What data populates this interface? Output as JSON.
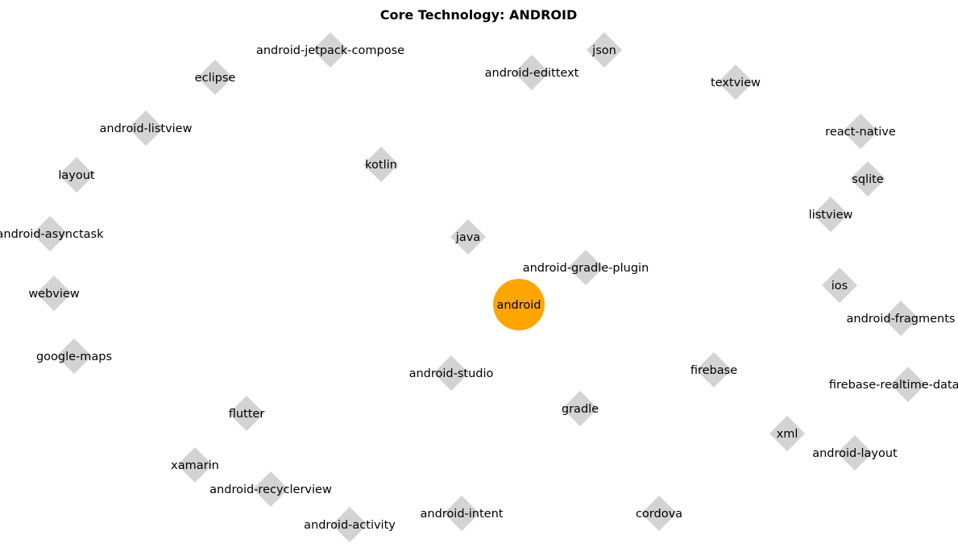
{
  "title": "Core Technology: ANDROID",
  "colors": {
    "center_node": "#FFA500",
    "related_node": "#D3D3D3",
    "label_text": "#000000",
    "background": "#FFFFFF"
  },
  "center": {
    "label": "android",
    "shape": "circle"
  },
  "node_shape": "diamond",
  "nodes": [
    {
      "label": "android-jetpack-compose"
    },
    {
      "label": "json"
    },
    {
      "label": "eclipse"
    },
    {
      "label": "android-edittext"
    },
    {
      "label": "textview"
    },
    {
      "label": "android-listview"
    },
    {
      "label": "react-native"
    },
    {
      "label": "layout"
    },
    {
      "label": "kotlin"
    },
    {
      "label": "sqlite"
    },
    {
      "label": "listview"
    },
    {
      "label": "android-asynctask"
    },
    {
      "label": "java"
    },
    {
      "label": "android-gradle-plugin"
    },
    {
      "label": "ios"
    },
    {
      "label": "webview"
    },
    {
      "label": "android-fragments"
    },
    {
      "label": "google-maps"
    },
    {
      "label": "firebase"
    },
    {
      "label": "android-studio"
    },
    {
      "label": "firebase-realtime-database"
    },
    {
      "label": "gradle"
    },
    {
      "label": "flutter"
    },
    {
      "label": "xml"
    },
    {
      "label": "android-layout"
    },
    {
      "label": "xamarin"
    },
    {
      "label": "android-recyclerview"
    },
    {
      "label": "android-intent"
    },
    {
      "label": "cordova"
    },
    {
      "label": "android-activity"
    }
  ]
}
